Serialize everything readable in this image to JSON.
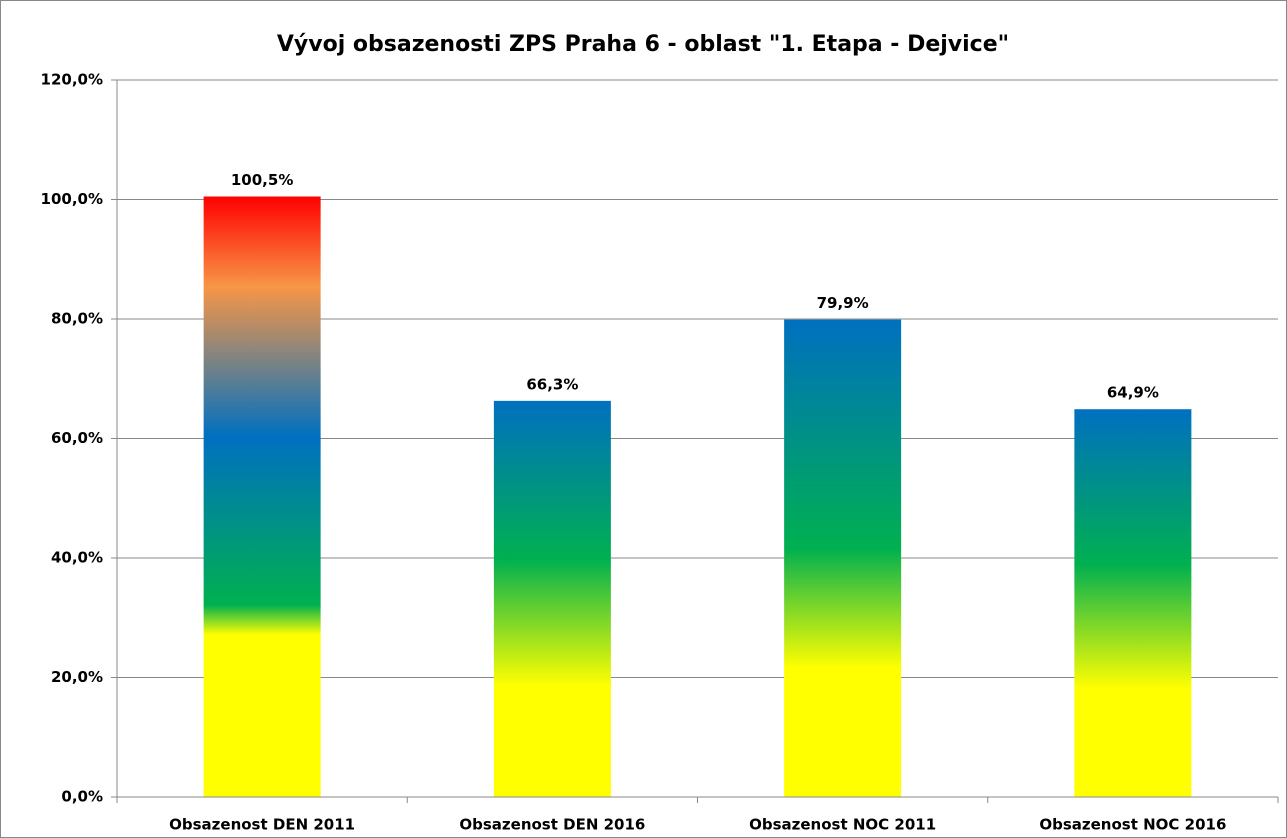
{
  "chart_data": {
    "type": "bar",
    "title": "Vývoj obsazenosti ZPS Praha 6 - oblast \"1. Etapa - Dejvice\"",
    "categories": [
      "Obsazenost DEN 2011",
      "Obsazenost DEN 2016",
      "Obsazenost NOC 2011",
      "Obsazenost NOC 2016"
    ],
    "values": [
      100.5,
      66.3,
      79.9,
      64.9
    ],
    "value_labels": [
      "100,5%",
      "66,3%",
      "79,9%",
      "64,9%"
    ],
    "ylim": [
      0,
      120
    ],
    "yticks": [
      {
        "value": 0,
        "label": "0,0%"
      },
      {
        "value": 20,
        "label": "20,0%"
      },
      {
        "value": 40,
        "label": "40,0%"
      },
      {
        "value": 60,
        "label": "60,0%"
      },
      {
        "value": 80,
        "label": "80,0%"
      },
      {
        "value": 100,
        "label": "100,0%"
      },
      {
        "value": 120,
        "label": "120,0%"
      }
    ],
    "grid": true
  }
}
